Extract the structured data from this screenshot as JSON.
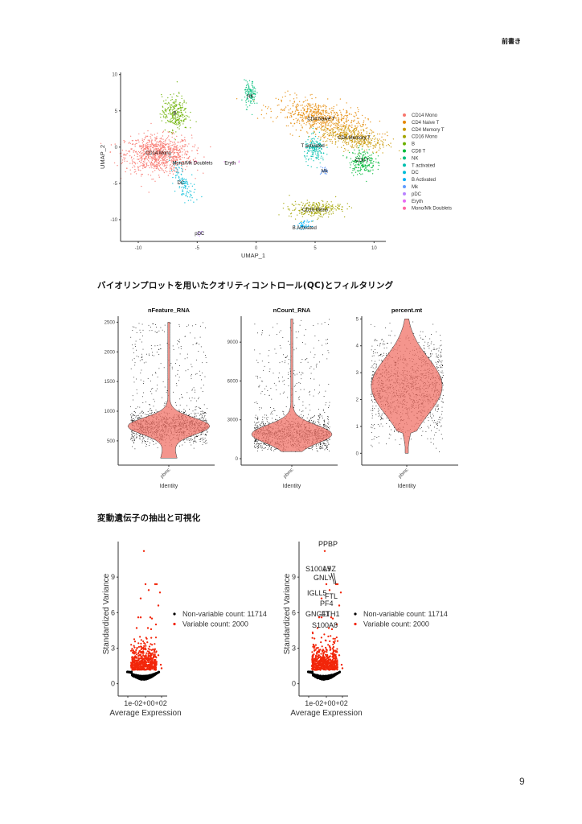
{
  "page": {
    "header_note": "前書き",
    "page_number": "9",
    "section_qc_title": "バイオリンプロットを用いたクオリティコントロール(QC)とフィルタリング",
    "section_hvg_title": "変動遺伝子の抽出と可視化"
  },
  "colors": {
    "violin_fill": "#F07167",
    "variable_red": "#F2260A",
    "axis": "#333333"
  },
  "chart_data": [
    {
      "id": "umap",
      "type": "scatter",
      "title": "",
      "xlabel": "UMAP_1",
      "ylabel": "UMAP_2",
      "xlim": [
        -11.5,
        11
      ],
      "ylim": [
        -13,
        10.3
      ],
      "xticks": [
        -10,
        -5,
        0,
        5,
        10
      ],
      "yticks": [
        -10,
        -5,
        0,
        5,
        10
      ],
      "grid": false,
      "legend_position": "right",
      "series": [
        {
          "name": "CD14 Mono",
          "color": "#F8766D",
          "center": [
            -8.3,
            -1.0
          ],
          "label_pos": [
            -8.3,
            -0.8
          ]
        },
        {
          "name": "CD4 Naive T",
          "color": "#E58700",
          "center": [
            5.5,
            4.0
          ],
          "label_pos": [
            5.5,
            3.9
          ]
        },
        {
          "name": "CD4 Memory T",
          "color": "#C99800",
          "center": [
            8.3,
            1.3
          ],
          "label_pos": [
            8.3,
            1.3
          ]
        },
        {
          "name": "CD16 Mono",
          "color": "#A3A500",
          "center": [
            5.0,
            -8.6
          ],
          "label_pos": [
            5.0,
            -8.6
          ]
        },
        {
          "name": "B",
          "color": "#6BB100",
          "center": [
            -6.9,
            4.7
          ],
          "label_pos": [
            -6.9,
            4.7
          ]
        },
        {
          "name": "CD8 T",
          "color": "#00BA38",
          "center": [
            9.0,
            -2.0
          ],
          "label_pos": [
            9.0,
            -1.8
          ]
        },
        {
          "name": "NK",
          "color": "#00BF7D",
          "center": [
            -0.5,
            7.3
          ],
          "label_pos": [
            -0.5,
            7.0
          ]
        },
        {
          "name": "T activated",
          "color": "#00C0AF",
          "center": [
            5.0,
            -0.4
          ],
          "label_pos": [
            4.8,
            0.2
          ]
        },
        {
          "name": "DC",
          "color": "#00BCD8",
          "center": [
            -6.3,
            -4.6
          ],
          "label_pos": [
            -6.4,
            -4.9
          ]
        },
        {
          "name": "B Activated",
          "color": "#00B0F6",
          "center": [
            4.1,
            -10.8
          ],
          "label_pos": [
            4.1,
            -11.1
          ]
        },
        {
          "name": "Mk",
          "color": "#619CFF",
          "center": [
            5.8,
            -3.3
          ],
          "label_pos": [
            5.8,
            -3.3
          ]
        },
        {
          "name": "pDC",
          "color": "#B983FF",
          "center": [
            -4.8,
            -11.9
          ],
          "label_pos": [
            -4.8,
            -11.9
          ]
        },
        {
          "name": "Eryth",
          "color": "#E76BF3",
          "center": [
            -2.2,
            -2.1
          ],
          "label_pos": [
            -2.2,
            -2.2
          ]
        },
        {
          "name": "Mono/Mk Doublets",
          "color": "#FF67A4",
          "center": [
            -5.4,
            -2.0
          ],
          "label_pos": [
            -5.4,
            -2.2
          ]
        }
      ]
    },
    {
      "id": "vln_nfeature",
      "type": "violin",
      "title": "nFeature_RNA",
      "xlabel": "Identity",
      "categories": [
        "pbmc"
      ],
      "ylim": [
        200,
        2600
      ],
      "yticks": [
        500,
        1000,
        1500,
        2000,
        2500
      ],
      "mode": 750,
      "min": 210,
      "max": 2500
    },
    {
      "id": "vln_ncount",
      "type": "violin",
      "title": "nCount_RNA",
      "xlabel": "Identity",
      "categories": [
        "pbmc"
      ],
      "ylim": [
        0,
        11000
      ],
      "yticks": [
        0,
        3000,
        6000,
        9000
      ],
      "mode": 1900,
      "min": 550,
      "max": 10800
    },
    {
      "id": "vln_percentmt",
      "type": "violin",
      "title": "percent.mt",
      "xlabel": "Identity",
      "categories": [
        "pbmc"
      ],
      "ylim": [
        -0.2,
        5.1
      ],
      "yticks": [
        0,
        1,
        2,
        3,
        4,
        5
      ],
      "mode": 2.5,
      "min": 0,
      "max": 5
    },
    {
      "id": "hvg_plain",
      "type": "scatter",
      "title": "",
      "xlabel": "Average Expression",
      "ylabel": "Standardized Variance",
      "xtick_labels": [
        "1e-02",
        "1e+00",
        "1e+02"
      ],
      "xtick_overlap_text": "1e-02+00+02",
      "yticks": [
        0,
        3,
        6,
        9
      ],
      "ylim": [
        -0.5,
        12
      ],
      "legend": [
        {
          "label": "Non-variable count: 11714",
          "color": "#000000"
        },
        {
          "label": "Variable count: 2000",
          "color": "#F2260A"
        }
      ],
      "non_variable_count": 11714,
      "variable_count": 2000,
      "max_point": 11.2
    },
    {
      "id": "hvg_labeled",
      "type": "scatter",
      "title": "",
      "xlabel": "Average Expression",
      "ylabel": "Standardized Variance",
      "xtick_labels": [
        "1e-02",
        "1e+00",
        "1e+02"
      ],
      "xtick_overlap_text": "1e-02+00+02",
      "yticks": [
        0,
        3,
        6,
        9
      ],
      "ylim": [
        -0.5,
        12
      ],
      "legend": [
        {
          "label": "Non-variable count: 11714",
          "color": "#000000"
        },
        {
          "label": "Variable count: 2000",
          "color": "#F2260A"
        }
      ],
      "gene_labels": [
        {
          "gene": "PPBP",
          "y": 11.2
        },
        {
          "gene": "S100A9",
          "y": 9.0
        },
        {
          "gene": "LYZ",
          "y": 9.0
        },
        {
          "gene": "GNLY",
          "y": 8.4
        },
        {
          "gene": "IGLL5",
          "y": 7.3
        },
        {
          "gene": "FTL",
          "y": 7.6
        },
        {
          "gene": "PF4",
          "y": 6.6
        },
        {
          "gene": "GNG11",
          "y": 5.6
        },
        {
          "gene": "FTH1",
          "y": 5.6
        },
        {
          "gene": "S100A8",
          "y": 5.0
        }
      ]
    }
  ]
}
